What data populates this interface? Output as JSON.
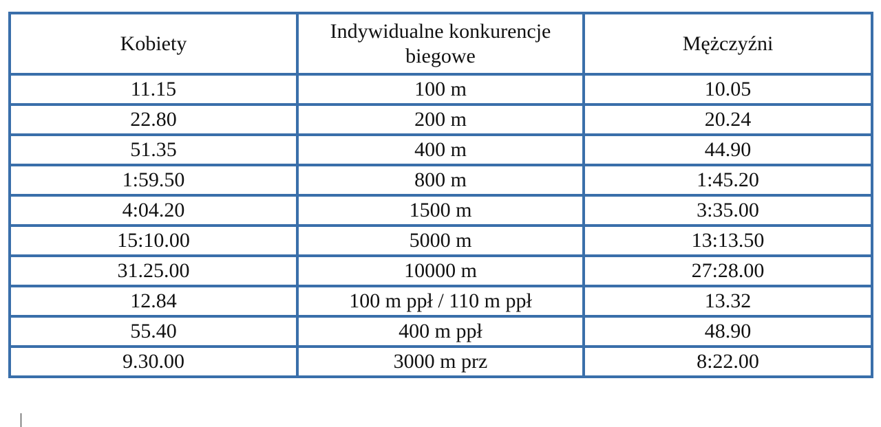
{
  "table": {
    "headers": [
      "Kobiety",
      "Indywidualne konkurencje biegowe",
      "Mężczyźni"
    ],
    "rows": [
      [
        "11.15",
        "100 m",
        "10.05"
      ],
      [
        "22.80",
        "200 m",
        "20.24"
      ],
      [
        "51.35",
        "400 m",
        "44.90"
      ],
      [
        "1:59.50",
        "800 m",
        "1:45.20"
      ],
      [
        "4:04.20",
        "1500 m",
        "3:35.00"
      ],
      [
        "15:10.00",
        "5000 m",
        "13:13.50"
      ],
      [
        "31.25.00",
        "10000 m",
        "27:28.00"
      ],
      [
        "12.84",
        "100 m ppł / 110 m ppł",
        "13.32"
      ],
      [
        "55.40",
        "400 m ppł",
        "48.90"
      ],
      [
        "9.30.00",
        "3000 m prz",
        "8:22.00"
      ]
    ]
  },
  "colors": {
    "border": "#3a6faa",
    "text": "#111111",
    "background": "#ffffff"
  }
}
